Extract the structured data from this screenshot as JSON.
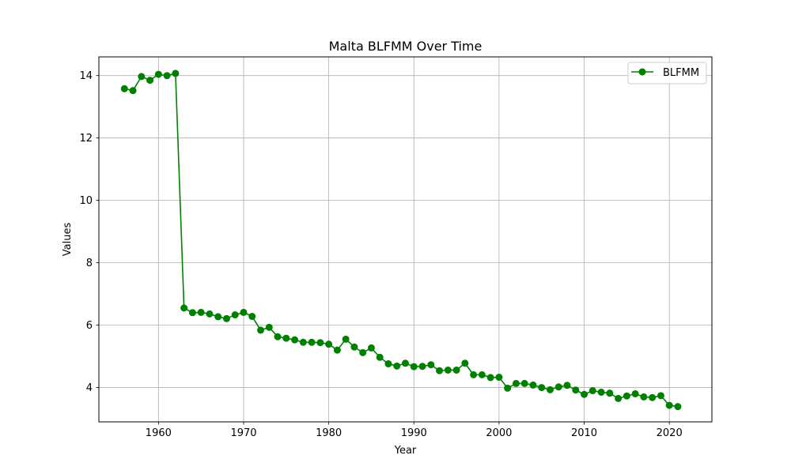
{
  "chart_data": {
    "type": "line",
    "title": "Malta BLFMM Over Time",
    "xlabel": "Year",
    "ylabel": "Values",
    "xlim": [
      1953,
      2025
    ],
    "ylim": [
      2.9,
      14.6
    ],
    "xticks": [
      1960,
      1970,
      1980,
      1990,
      2000,
      2010,
      2020
    ],
    "yticks": [
      4,
      6,
      8,
      10,
      12,
      14
    ],
    "grid": true,
    "legend_position": "top-right",
    "series": [
      {
        "name": "BLFMM",
        "color": "#008000",
        "marker": "circle",
        "x": [
          1956,
          1957,
          1958,
          1959,
          1960,
          1961,
          1962,
          1963,
          1964,
          1965,
          1966,
          1967,
          1968,
          1969,
          1970,
          1971,
          1972,
          1973,
          1974,
          1975,
          1976,
          1977,
          1978,
          1979,
          1980,
          1981,
          1982,
          1983,
          1984,
          1985,
          1986,
          1987,
          1988,
          1989,
          1990,
          1991,
          1992,
          1993,
          1994,
          1995,
          1996,
          1997,
          1998,
          1999,
          2000,
          2001,
          2002,
          2003,
          2004,
          2005,
          2006,
          2007,
          2008,
          2009,
          2010,
          2011,
          2012,
          2013,
          2014,
          2015,
          2016,
          2017,
          2018,
          2019,
          2020,
          2021
        ],
        "values": [
          13.58,
          13.52,
          13.97,
          13.85,
          14.04,
          14.0,
          14.07,
          6.55,
          6.4,
          6.41,
          6.36,
          6.27,
          6.21,
          6.33,
          6.41,
          6.28,
          5.84,
          5.93,
          5.63,
          5.58,
          5.53,
          5.45,
          5.45,
          5.44,
          5.39,
          5.2,
          5.55,
          5.3,
          5.12,
          5.27,
          4.97,
          4.76,
          4.69,
          4.78,
          4.67,
          4.68,
          4.73,
          4.54,
          4.56,
          4.56,
          4.78,
          4.41,
          4.41,
          4.32,
          4.33,
          3.98,
          4.13,
          4.13,
          4.08,
          4.0,
          3.93,
          4.02,
          4.07,
          3.92,
          3.78,
          3.9,
          3.85,
          3.82,
          3.65,
          3.73,
          3.8,
          3.7,
          3.68,
          3.74,
          3.43,
          3.39
        ]
      }
    ]
  }
}
